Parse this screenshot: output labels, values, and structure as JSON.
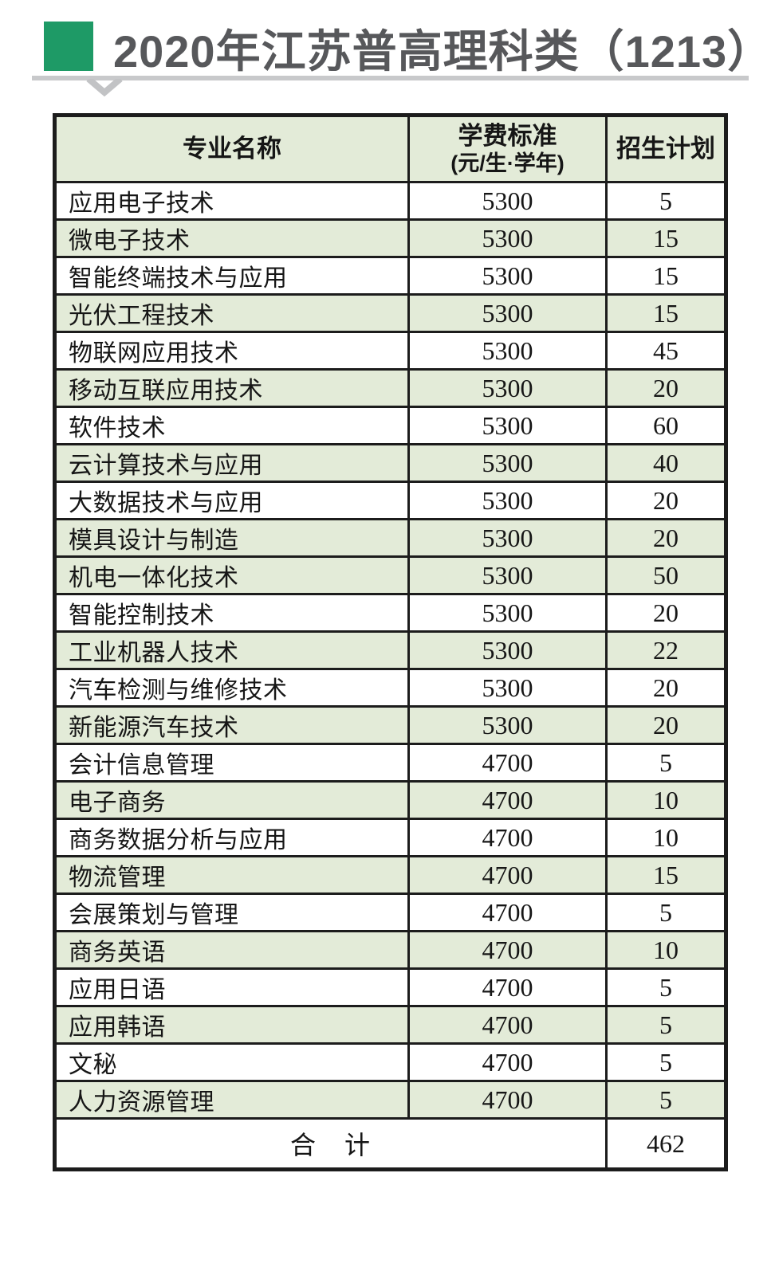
{
  "title": {
    "text": "2020年江苏普高理科类（1213）"
  },
  "colors": {
    "accent_green": "#1e9a66",
    "row_green": "#e3ebd8",
    "rule_gray": "#c8c9cb",
    "title_gray": "#57585b",
    "border_black": "#1c1c1c"
  },
  "table": {
    "headers": {
      "major": "专业名称",
      "tuition_line1": "学费标准",
      "tuition_line2": "(元/生·学年)",
      "plan": "招生计划"
    },
    "rows": [
      {
        "major": "应用电子技术",
        "tuition": "5300",
        "plan": "5",
        "shaded": false
      },
      {
        "major": "微电子技术",
        "tuition": "5300",
        "plan": "15",
        "shaded": true
      },
      {
        "major": "智能终端技术与应用",
        "tuition": "5300",
        "plan": "15",
        "shaded": false
      },
      {
        "major": "光伏工程技术",
        "tuition": "5300",
        "plan": "15",
        "shaded": true
      },
      {
        "major": "物联网应用技术",
        "tuition": "5300",
        "plan": "45",
        "shaded": false
      },
      {
        "major": "移动互联应用技术",
        "tuition": "5300",
        "plan": "20",
        "shaded": true
      },
      {
        "major": "软件技术",
        "tuition": "5300",
        "plan": "60",
        "shaded": false
      },
      {
        "major": "云计算技术与应用",
        "tuition": "5300",
        "plan": "40",
        "shaded": true
      },
      {
        "major": "大数据技术与应用",
        "tuition": "5300",
        "plan": "20",
        "shaded": false
      },
      {
        "major": "模具设计与制造",
        "tuition": "5300",
        "plan": "20",
        "shaded": true
      },
      {
        "major": "机电一体化技术",
        "tuition": "5300",
        "plan": "50",
        "shaded": true
      },
      {
        "major": "智能控制技术",
        "tuition": "5300",
        "plan": "20",
        "shaded": false
      },
      {
        "major": "工业机器人技术",
        "tuition": "5300",
        "plan": "22",
        "shaded": true
      },
      {
        "major": "汽车检测与维修技术",
        "tuition": "5300",
        "plan": "20",
        "shaded": false
      },
      {
        "major": "新能源汽车技术",
        "tuition": "5300",
        "plan": "20",
        "shaded": true
      },
      {
        "major": "会计信息管理",
        "tuition": "4700",
        "plan": "5",
        "shaded": false
      },
      {
        "major": "电子商务",
        "tuition": "4700",
        "plan": "10",
        "shaded": true
      },
      {
        "major": "商务数据分析与应用",
        "tuition": "4700",
        "plan": "10",
        "shaded": false
      },
      {
        "major": "物流管理",
        "tuition": "4700",
        "plan": "15",
        "shaded": true
      },
      {
        "major": "会展策划与管理",
        "tuition": "4700",
        "plan": "5",
        "shaded": false
      },
      {
        "major": "商务英语",
        "tuition": "4700",
        "plan": "10",
        "shaded": true
      },
      {
        "major": "应用日语",
        "tuition": "4700",
        "plan": "5",
        "shaded": false
      },
      {
        "major": "应用韩语",
        "tuition": "4700",
        "plan": "5",
        "shaded": true
      },
      {
        "major": "文秘",
        "tuition": "4700",
        "plan": "5",
        "shaded": false
      },
      {
        "major": "人力资源管理",
        "tuition": "4700",
        "plan": "5",
        "shaded": true
      }
    ],
    "total": {
      "label": "合　计",
      "value": "462"
    }
  }
}
